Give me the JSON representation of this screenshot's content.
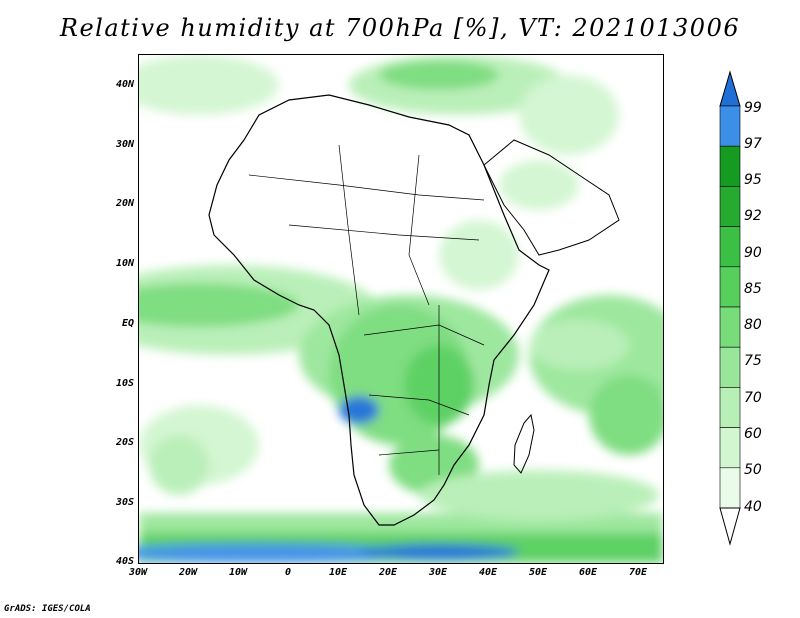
{
  "title": "Relative humidity at 700hPa [%], VT: 2021013006",
  "credit": "GrADS: IGES/COLA",
  "map": {
    "region": "Africa and surrounding oceans",
    "lat_labels": [
      "40N",
      "30N",
      "20N",
      "10N",
      "EQ",
      "10S",
      "20S",
      "30S",
      "40S"
    ],
    "lon_labels": [
      "30W",
      "20W",
      "10W",
      "0",
      "10E",
      "20E",
      "30E",
      "40E",
      "50E",
      "60E",
      "70E"
    ]
  },
  "colorbar": {
    "labels": [
      "99",
      "97",
      "95",
      "92",
      "90",
      "85",
      "80",
      "75",
      "70",
      "60",
      "50",
      "40"
    ],
    "colors": [
      "#1f6fd6",
      "#3c8fe6",
      "#159a22",
      "#26ab30",
      "#3cbf45",
      "#56cf5d",
      "#79dc7b",
      "#99e69a",
      "#b7efb6",
      "#d2f6d0",
      "#ebfbea",
      "#ffffff"
    ]
  }
}
